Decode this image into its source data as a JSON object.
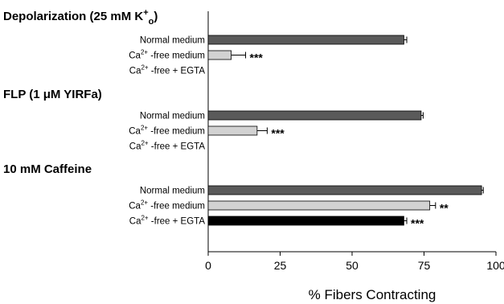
{
  "chart_data": {
    "type": "bar",
    "orientation": "horizontal",
    "xlabel": "% Fibers Contracting",
    "xlim": [
      0,
      100
    ],
    "xticks": [
      0,
      25,
      50,
      75,
      100
    ],
    "colors": {
      "Normal medium": "#5a5a5a",
      "Ca2+ -free medium": "#d2d2d2",
      "Ca2+ -free + EGTA": "#000000"
    },
    "groups": [
      {
        "title": "Depolarization (25 mM K",
        "title_sup": "+",
        "title_sub": "o",
        "title_end": ")",
        "bars": [
          {
            "label_pre": "Normal medium",
            "label_sup": "",
            "label_post": "",
            "value": 68,
            "error": 1,
            "sig": ""
          },
          {
            "label_pre": "Ca",
            "label_sup": "2+",
            "label_post": " -free medium",
            "value": 8,
            "error": 5,
            "sig": "***"
          },
          {
            "label_pre": "Ca",
            "label_sup": "2+",
            "label_post": " -free + EGTA",
            "value": 0,
            "error": 0,
            "sig": ""
          }
        ]
      },
      {
        "title": "FLP (1 μM YIRFa)",
        "title_sup": "",
        "title_sub": "",
        "title_end": "",
        "bars": [
          {
            "label_pre": "Normal medium",
            "label_sup": "",
            "label_post": "",
            "value": 74,
            "error": 0.7,
            "sig": ""
          },
          {
            "label_pre": "Ca",
            "label_sup": "2+",
            "label_post": " -free medium",
            "value": 17,
            "error": 3.5,
            "sig": "***"
          },
          {
            "label_pre": "Ca",
            "label_sup": "2+",
            "label_post": " -free + EGTA",
            "value": 0,
            "error": 0,
            "sig": ""
          }
        ]
      },
      {
        "title": "10 mM Caffeine",
        "title_sup": "",
        "title_sub": "",
        "title_end": "",
        "bars": [
          {
            "label_pre": "Normal medium",
            "label_sup": "",
            "label_post": "",
            "value": 95,
            "error": 0.6,
            "sig": ""
          },
          {
            "label_pre": "Ca",
            "label_sup": "2+",
            "label_post": " -free medium",
            "value": 77,
            "error": 2,
            "sig": "**"
          },
          {
            "label_pre": "Ca",
            "label_sup": "2+",
            "label_post": " -free + EGTA",
            "value": 68,
            "error": 1,
            "sig": "***"
          }
        ]
      }
    ]
  }
}
